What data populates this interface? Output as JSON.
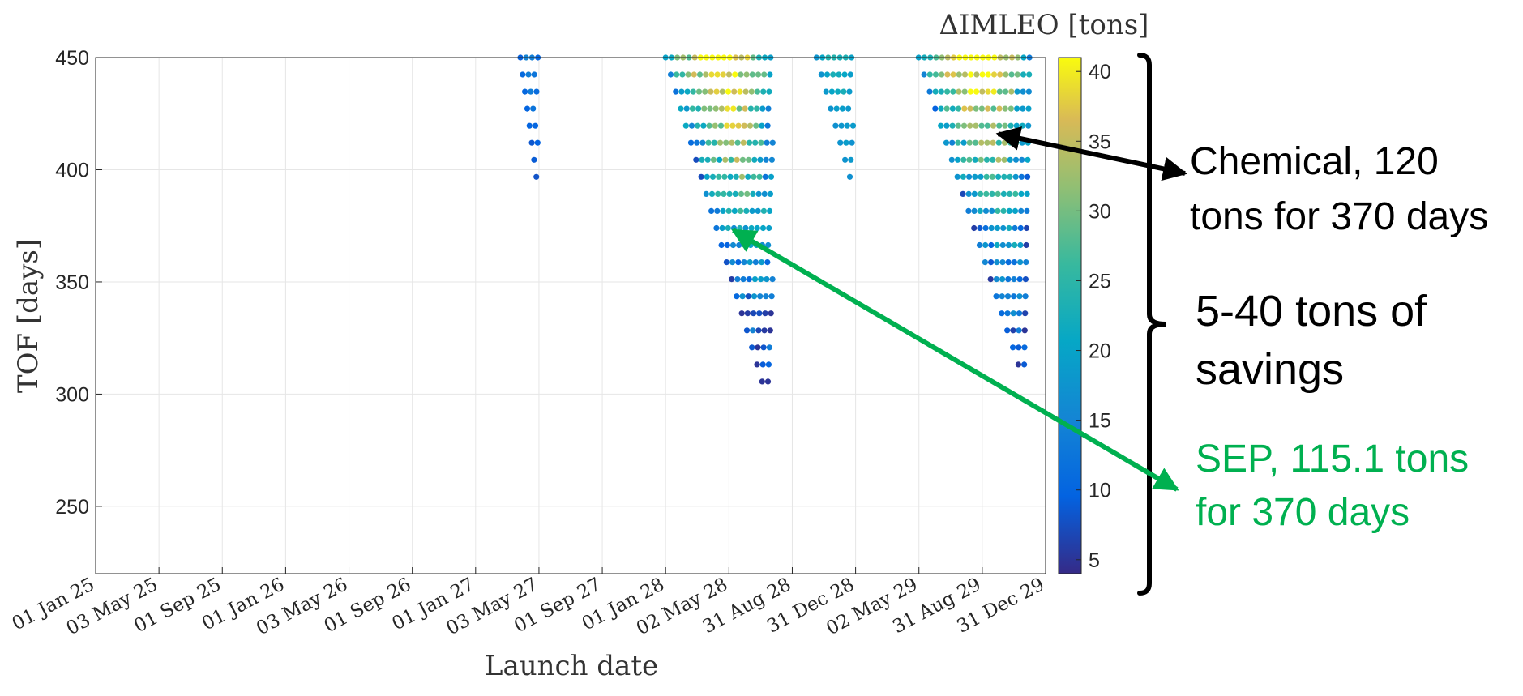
{
  "chart_data": {
    "type": "scatter",
    "title": "",
    "xlabel": "Launch date",
    "ylabel": "TOF [days]",
    "x_axis_type": "date",
    "xlim": [
      "2025-01-01",
      "2029-12-31"
    ],
    "ylim": [
      220,
      450
    ],
    "grid": true,
    "x_tick_labels": [
      "01 Jan 25",
      "03 May 25",
      "01 Sep 25",
      "01 Jan 26",
      "03 May 26",
      "01 Sep 26",
      "01 Jan 27",
      "03 May 27",
      "01 Sep 27",
      "01 Jan 28",
      "02 May 28",
      "31 Aug 28",
      "31 Dec 28",
      "02 May 29",
      "31 Aug 29",
      "31 Dec 29"
    ],
    "y_ticks": [
      250,
      300,
      350,
      400,
      450
    ],
    "colorbar": {
      "label": "ΔIMLEO [tons]",
      "range": [
        4,
        41
      ],
      "ticks": [
        5,
        10,
        15,
        20,
        25,
        30,
        35,
        40
      ],
      "colormap": "parula"
    },
    "clusters": [
      {
        "launch_window": "2027",
        "x_start": "2027-03-28",
        "x_end": "2027-05-01",
        "tof_min": 394,
        "tof_max": 450,
        "tof_step": 7.6,
        "value_range": [
          8,
          15
        ]
      },
      {
        "launch_window": "2028a",
        "x_start": "2028-01-01",
        "x_end": "2028-07-25",
        "tof_min": 306,
        "tof_max": 450,
        "tof_step": 7.6,
        "value_range": [
          5,
          41
        ]
      },
      {
        "launch_window": "2028b",
        "x_start": "2028-10-17",
        "x_end": "2028-12-27",
        "tof_min": 394,
        "tof_max": 450,
        "tof_step": 7.6,
        "value_range": [
          16,
          24
        ]
      },
      {
        "launch_window": "2029",
        "x_start": "2029-05-01",
        "x_end": "2029-11-30",
        "tof_min": 314,
        "tof_max": 450,
        "tof_step": 7.6,
        "value_range": [
          5,
          41
        ]
      }
    ],
    "annotations": [
      {
        "text_lines": [
          "Chemical, 120",
          "tons for 370 days"
        ],
        "color": "#000000",
        "points_to": {
          "date": "2029-10-01",
          "tof": 416
        }
      },
      {
        "text_lines": [
          "5-40 tons of",
          "savings"
        ],
        "color": "#000000",
        "kind": "brace"
      },
      {
        "text_lines": [
          "SEP, 115.1 tons",
          "for 370 days"
        ],
        "color": "#00b050",
        "points_to": {
          "date": "2028-05-10",
          "tof": 373
        }
      }
    ]
  },
  "colors": {
    "chemical_arrow": "#000000",
    "sep_arrow": "#00b050",
    "grid": "#e6e6e6",
    "axis": "#262626"
  }
}
